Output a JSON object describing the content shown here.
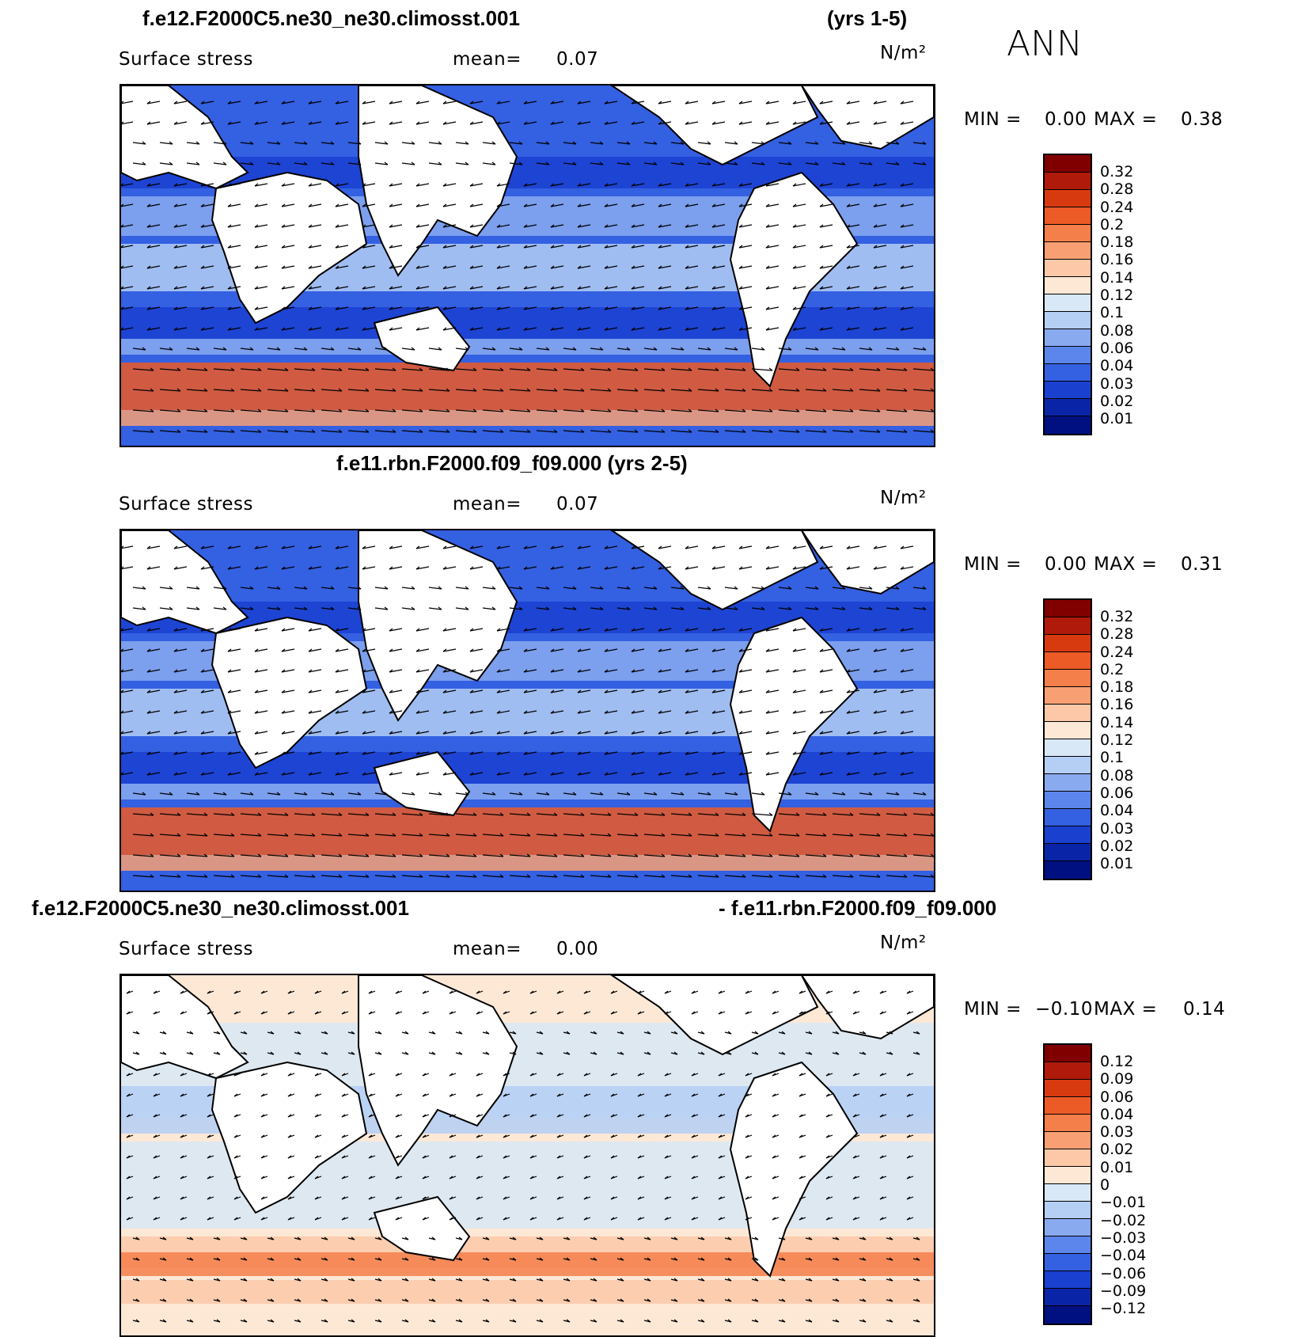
{
  "header": {
    "season": "ANN"
  },
  "panels": [
    {
      "title_left": "f.e12.F2000C5.ne30_ne30.climosst.001",
      "title_right": "(yrs 1-5)",
      "variable": "Surface stress",
      "mean_label": "mean=",
      "mean_value": "0.07",
      "units": "N/m²",
      "min_label": "MIN =",
      "min_value": "0.00",
      "max_label": "MAX =",
      "max_value": "0.38",
      "colorbar_labels": [
        "0.32",
        "0.28",
        "0.24",
        "0.2",
        "0.18",
        "0.16",
        "0.14",
        "0.12",
        "0.1",
        "0.08",
        "0.06",
        "0.04",
        "0.03",
        "0.02",
        "0.01"
      ],
      "colorbar_colors": [
        "#800000",
        "#b01a0a",
        "#d83a10",
        "#ec5a26",
        "#f47f4a",
        "#f8a074",
        "#fcc8a8",
        "#fde8d6",
        "#d8e8f6",
        "#b4cef4",
        "#8aaaf0",
        "#5c86ec",
        "#3460e2",
        "#1a40d0",
        "#0a24a8",
        "#001080"
      ]
    },
    {
      "title_left": "f.e11.rbn.F2000.f09_f09.000 (yrs 2-5)",
      "variable": "Surface stress",
      "mean_label": "mean=",
      "mean_value": "0.07",
      "units": "N/m²",
      "min_label": "MIN =",
      "min_value": "0.00",
      "max_label": "MAX =",
      "max_value": "0.31",
      "colorbar_labels": [
        "0.32",
        "0.28",
        "0.24",
        "0.2",
        "0.18",
        "0.16",
        "0.14",
        "0.12",
        "0.1",
        "0.08",
        "0.06",
        "0.04",
        "0.03",
        "0.02",
        "0.01"
      ],
      "colorbar_colors": [
        "#800000",
        "#b01a0a",
        "#d83a10",
        "#ec5a26",
        "#f47f4a",
        "#f8a074",
        "#fcc8a8",
        "#fde8d6",
        "#d8e8f6",
        "#b4cef4",
        "#8aaaf0",
        "#5c86ec",
        "#3460e2",
        "#1a40d0",
        "#0a24a8",
        "#001080"
      ]
    },
    {
      "title_left": "f.e12.F2000C5.ne30_ne30.climosst.001",
      "title_right": "- f.e11.rbn.F2000.f09_f09.000",
      "variable": "Surface stress",
      "mean_label": "mean=",
      "mean_value": "0.00",
      "units": "N/m²",
      "min_label": "MIN =",
      "min_value": "−0.10",
      "max_label": "MAX =",
      "max_value": "0.14",
      "colorbar_labels": [
        "0.12",
        "0.09",
        "0.06",
        "0.04",
        "0.03",
        "0.02",
        "0.01",
        "0",
        "−0.01",
        "−0.02",
        "−0.03",
        "−0.04",
        "−0.06",
        "−0.09",
        "−0.12"
      ],
      "colorbar_colors": [
        "#800000",
        "#b01a0a",
        "#d83a10",
        "#ec5a26",
        "#f47f4a",
        "#f8a074",
        "#fcc8a8",
        "#fde8d6",
        "#d8e8f6",
        "#b4cef4",
        "#8aaaf0",
        "#5c86ec",
        "#3460e2",
        "#1a40d0",
        "#0a24a8",
        "#001080"
      ]
    }
  ]
}
